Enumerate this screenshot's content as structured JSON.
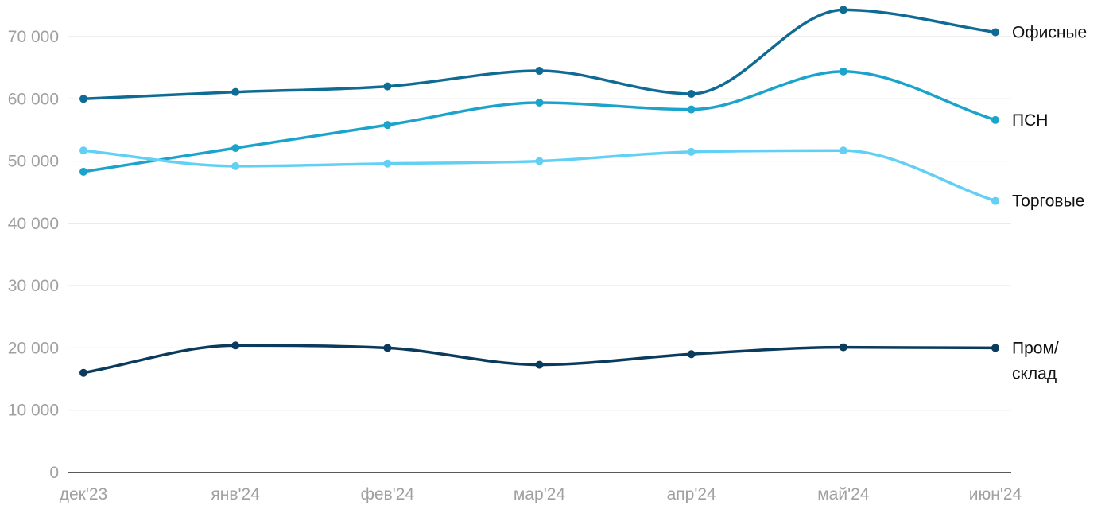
{
  "chart_data": {
    "type": "line",
    "categories": [
      "дек'23",
      "янв'24",
      "фев'24",
      "мар'24",
      "апр'24",
      "май'24",
      "июн'24"
    ],
    "ylim": [
      0,
      70000
    ],
    "yticks": [
      0,
      10000,
      20000,
      30000,
      40000,
      50000,
      60000,
      70000
    ],
    "ytick_labels": [
      "0",
      "10 000",
      "20 000",
      "30 000",
      "40 000",
      "50 000",
      "60 000",
      "70 000"
    ],
    "grid": true,
    "legend": "direct labels at line ends",
    "series": [
      {
        "name": "Офисные",
        "label_lines": [
          "Офисные"
        ],
        "color": "#0f6b93",
        "values": [
          60000,
          61100,
          62000,
          64500,
          60800,
          74300,
          70700
        ]
      },
      {
        "name": "ПСН",
        "label_lines": [
          "ПСН"
        ],
        "color": "#1ba3cc",
        "values": [
          48300,
          52100,
          55800,
          59400,
          58300,
          64400,
          56600
        ]
      },
      {
        "name": "Торговые",
        "label_lines": [
          "Торговые"
        ],
        "color": "#62d0f5",
        "values": [
          51700,
          49200,
          49600,
          50000,
          51500,
          51700,
          43600
        ]
      },
      {
        "name": "Пром/склад",
        "label_lines": [
          "Пром/",
          "склад"
        ],
        "color": "#0a3a5c",
        "values": [
          16000,
          20400,
          20000,
          17300,
          19000,
          20100,
          20000
        ]
      }
    ]
  }
}
